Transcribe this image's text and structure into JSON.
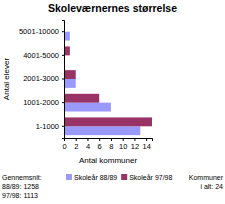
{
  "chart_data": {
    "type": "bar",
    "orientation": "horizontal",
    "title": "Skoleværnernes størrelse",
    "x_label": "Antal kommuner",
    "y_label": "Antal elever",
    "categories": [
      "5001-10000",
      "4001-5000",
      "2001-3000",
      "1001-2000",
      "1-1000"
    ],
    "series": [
      {
        "name": "Skoleår 88/89",
        "color": "#9999ff",
        "values": [
          1,
          0,
          2,
          8,
          13
        ]
      },
      {
        "name": "Skoleår 97/98",
        "color": "#993366",
        "values": [
          0,
          1,
          2,
          6,
          15
        ]
      }
    ],
    "xlim": [
      0,
      15
    ],
    "xticks": [
      0,
      2,
      4,
      6,
      8,
      10,
      12,
      14
    ],
    "grid": false,
    "legend": "bottom",
    "annotations": [
      "Gennemsnit:",
      "88/89: 1258",
      "97/98: 1113",
      "Kommuner",
      "i alt: 24"
    ]
  }
}
